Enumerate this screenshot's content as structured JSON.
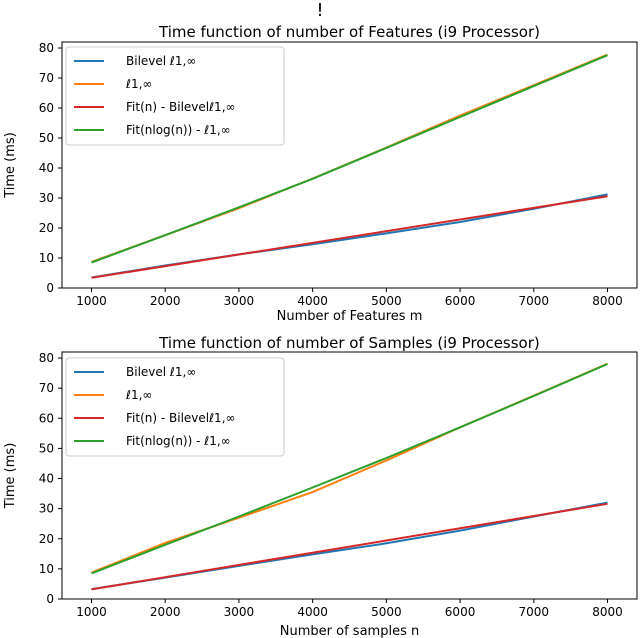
{
  "page_marker": "!",
  "chart_data": [
    {
      "type": "line",
      "title": "Time function of number of Features (i9 Processor)",
      "xlabel": "Number of Features m",
      "ylabel": "Time (ms)",
      "xlim": [
        600,
        8400
      ],
      "ylim": [
        0,
        82
      ],
      "xticks": [
        1000,
        2000,
        3000,
        4000,
        5000,
        6000,
        7000,
        8000
      ],
      "yticks": [
        0,
        10,
        20,
        30,
        40,
        50,
        60,
        70,
        80
      ],
      "grid": false,
      "legend_position": "top-left",
      "series": [
        {
          "name": "Bilevel ℓ1,∞",
          "color": "#1f77b4",
          "x": [
            1000,
            2000,
            3000,
            4000,
            5000,
            6000,
            7000,
            8000
          ],
          "y": [
            3.5,
            7.5,
            11.2,
            14.6,
            18.2,
            22.0,
            26.4,
            31.2
          ]
        },
        {
          "name": "ℓ1,∞",
          "color": "#ff7f0e",
          "x": [
            1000,
            2000,
            3000,
            4000,
            5000,
            6000,
            7000,
            8000
          ],
          "y": [
            8.7,
            17.6,
            26.6,
            36.5,
            46.8,
            57.5,
            67.6,
            77.8
          ]
        },
        {
          "name": "Fit(n) - Bilevelℓ1,∞",
          "color": "#d62728",
          "x": [
            1000,
            8000
          ],
          "y": [
            3.4,
            30.6
          ]
        },
        {
          "name": "Fit(nlog(n)) - ℓ1,∞",
          "color": "#2ca02c",
          "x": [
            1000,
            2000,
            3000,
            4000,
            5000,
            6000,
            7000,
            8000
          ],
          "y": [
            8.5,
            17.6,
            26.9,
            36.4,
            46.7,
            57.0,
            67.3,
            77.6
          ]
        }
      ]
    },
    {
      "type": "line",
      "title": "Time function of number of Samples (i9 Processor)",
      "xlabel": "Number of samples n",
      "ylabel": "Time (ms)",
      "xlim": [
        600,
        8400
      ],
      "ylim": [
        0,
        82
      ],
      "xticks": [
        1000,
        2000,
        3000,
        4000,
        5000,
        6000,
        7000,
        8000
      ],
      "yticks": [
        0,
        10,
        20,
        30,
        40,
        50,
        60,
        70,
        80
      ],
      "grid": false,
      "legend_position": "top-left",
      "series": [
        {
          "name": "Bilevel ℓ1,∞",
          "color": "#1f77b4",
          "x": [
            1000,
            2000,
            3000,
            4000,
            5000,
            6000,
            7000,
            8000
          ],
          "y": [
            3.3,
            7.1,
            11.0,
            14.8,
            18.5,
            22.7,
            27.4,
            32.0
          ]
        },
        {
          "name": "ℓ1,∞",
          "color": "#ff7f0e",
          "x": [
            1000,
            2000,
            3000,
            4000,
            5000,
            6000,
            7000,
            8000
          ],
          "y": [
            8.8,
            18.6,
            27.0,
            35.5,
            46.0,
            57.0,
            67.5,
            78.1
          ]
        },
        {
          "name": "Fit(n) - Bilevelℓ1,∞",
          "color": "#d62728",
          "x": [
            1000,
            8000
          ],
          "y": [
            3.2,
            31.6
          ]
        },
        {
          "name": "Fit(nlog(n)) - ℓ1,∞",
          "color": "#2ca02c",
          "x": [
            1000,
            2000,
            3000,
            4000,
            5000,
            6000,
            7000,
            8000
          ],
          "y": [
            8.5,
            18.0,
            27.4,
            37.0,
            46.8,
            57.0,
            67.4,
            78.0
          ]
        }
      ]
    }
  ]
}
